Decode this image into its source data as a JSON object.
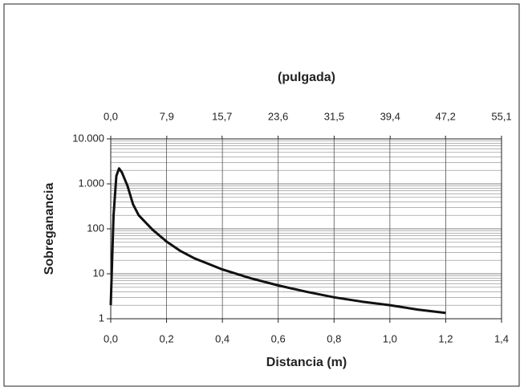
{
  "chart_data": {
    "type": "line",
    "title": "(pulgada)",
    "x_label": "Distancia (m)",
    "y_label": "Sobreganancia",
    "log_y": true,
    "grid": true,
    "color": "#111111",
    "xlim": [
      0,
      1.4
    ],
    "xticks": [
      {
        "value": 0,
        "label": "0,0"
      },
      {
        "value": 0.2,
        "label": "0,2"
      },
      {
        "value": 0.4,
        "label": "0,4"
      },
      {
        "value": 0.6,
        "label": "0,6"
      },
      {
        "value": 0.8,
        "label": "0,8"
      },
      {
        "value": 1.0,
        "label": "1,0"
      },
      {
        "value": 1.2,
        "label": "1,2"
      },
      {
        "value": 1.4,
        "label": "1,4"
      }
    ],
    "x2lim": [
      0,
      55.1
    ],
    "x2ticks": [
      {
        "value": 0,
        "label": "0,0"
      },
      {
        "value": 7.9,
        "label": "7,9"
      },
      {
        "value": 15.7,
        "label": "15,7"
      },
      {
        "value": 23.6,
        "label": "23,6"
      },
      {
        "value": 31.5,
        "label": "31,5"
      },
      {
        "value": 39.4,
        "label": "39,4"
      },
      {
        "value": 47.2,
        "label": "47,2"
      },
      {
        "value": 55.1,
        "label": "55,1"
      }
    ],
    "ylim": [
      1,
      10000
    ],
    "yticks": [
      1,
      10,
      100,
      {
        "value": 1000,
        "label": "1.000"
      },
      {
        "value": 10000,
        "label": "10.000"
      }
    ],
    "x": [
      0,
      0.01,
      0.02,
      0.03,
      0.04,
      0.06,
      0.08,
      0.1,
      0.15,
      0.2,
      0.25,
      0.3,
      0.4,
      0.5,
      0.6,
      0.7,
      0.8,
      0.9,
      1.0,
      1.1,
      1.2
    ],
    "values": [
      2,
      200,
      1500,
      2200,
      1800,
      900,
      350,
      200,
      95,
      52,
      32,
      22,
      12.5,
      8,
      5.5,
      4,
      3,
      2.4,
      2,
      1.6,
      1.35
    ]
  }
}
